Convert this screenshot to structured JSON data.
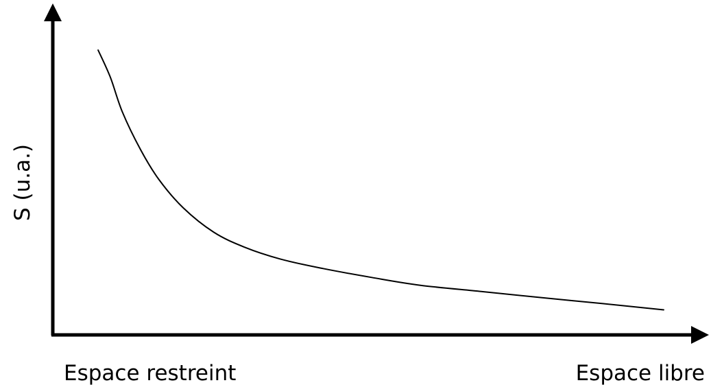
{
  "chart_data": {
    "type": "line",
    "title": "",
    "xlabel": "",
    "ylabel": "S (u.a.)",
    "x_start_label": "Espace restreint",
    "x_end_label": "Espace libre",
    "grid": false,
    "legend": "none",
    "xlim": [
      0,
      100
    ],
    "ylim": [
      0,
      100
    ],
    "series": [
      {
        "color": "#000000",
        "x": [
          7,
          9,
          11,
          14,
          17,
          21,
          26,
          31,
          37,
          44,
          52,
          60,
          70,
          80,
          90,
          100
        ],
        "y": [
          100,
          90,
          77,
          63,
          52,
          41.5,
          32.5,
          27,
          22.5,
          19,
          15.7,
          12.8,
          10.5,
          8.2,
          6,
          3.7
        ]
      }
    ]
  }
}
